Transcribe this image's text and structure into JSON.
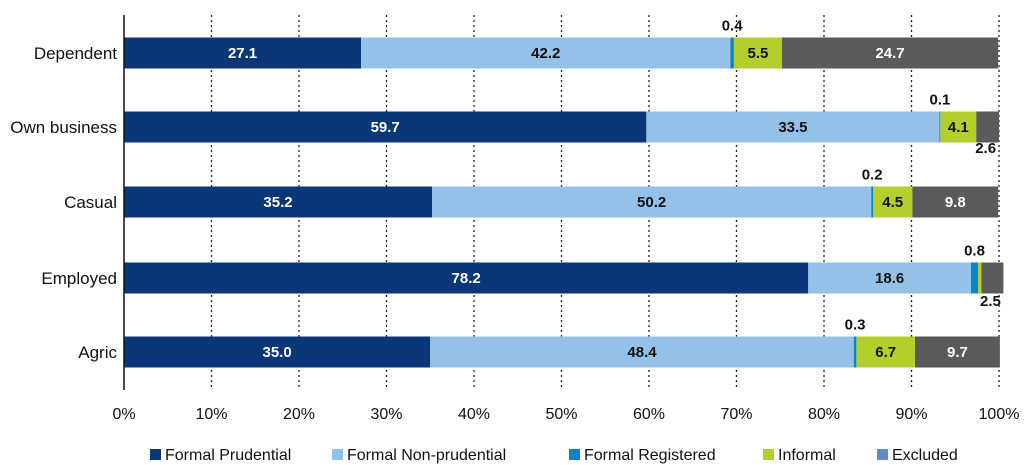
{
  "chart_data": {
    "type": "bar",
    "orientation": "horizontal",
    "stacked": true,
    "percent_stacked": true,
    "categories": [
      "Dependent",
      "Own business",
      "Casual",
      "Employed",
      "Agric"
    ],
    "series": [
      {
        "name": "Formal Prudential",
        "color": "#0b3677",
        "values": [
          27.1,
          59.7,
          35.2,
          78.2,
          35.0
        ],
        "labels": [
          "27.1",
          "59.7",
          "35.2",
          "78.2",
          "35.0"
        ]
      },
      {
        "name": "Formal Non-prudential",
        "color": "#93c1e8",
        "values": [
          42.2,
          33.5,
          50.2,
          18.6,
          48.4
        ],
        "labels": [
          "42.2",
          "33.5",
          "50.2",
          "18.6",
          "48.4"
        ]
      },
      {
        "name": "Formal Registered",
        "color": "#0a84c6",
        "values": [
          0.4,
          0.1,
          0.2,
          0.8,
          0.3
        ],
        "labels": [
          "0.4",
          "0.1",
          "0.2",
          "0.8",
          "0.3"
        ]
      },
      {
        "name": "Informal",
        "color": "#b3cf2b",
        "values": [
          5.5,
          4.1,
          4.5,
          0.4,
          6.7
        ],
        "labels": [
          "5.5",
          "4.1",
          "4.5",
          "",
          "6.7"
        ]
      },
      {
        "name": "Excluded",
        "color": "#5a5a5a",
        "legend_color": "#5d8cc4",
        "values": [
          24.7,
          2.6,
          9.8,
          2.5,
          9.7
        ],
        "labels": [
          "24.7",
          "2.6",
          "9.8",
          "2.5",
          "9.7"
        ]
      }
    ],
    "x_ticks": [
      "0%",
      "10%",
      "20%",
      "30%",
      "40%",
      "50%",
      "60%",
      "70%",
      "80%",
      "90%",
      "100%"
    ],
    "xlim": [
      0,
      100
    ],
    "grid": "vertical dotted",
    "legend_position": "bottom"
  }
}
